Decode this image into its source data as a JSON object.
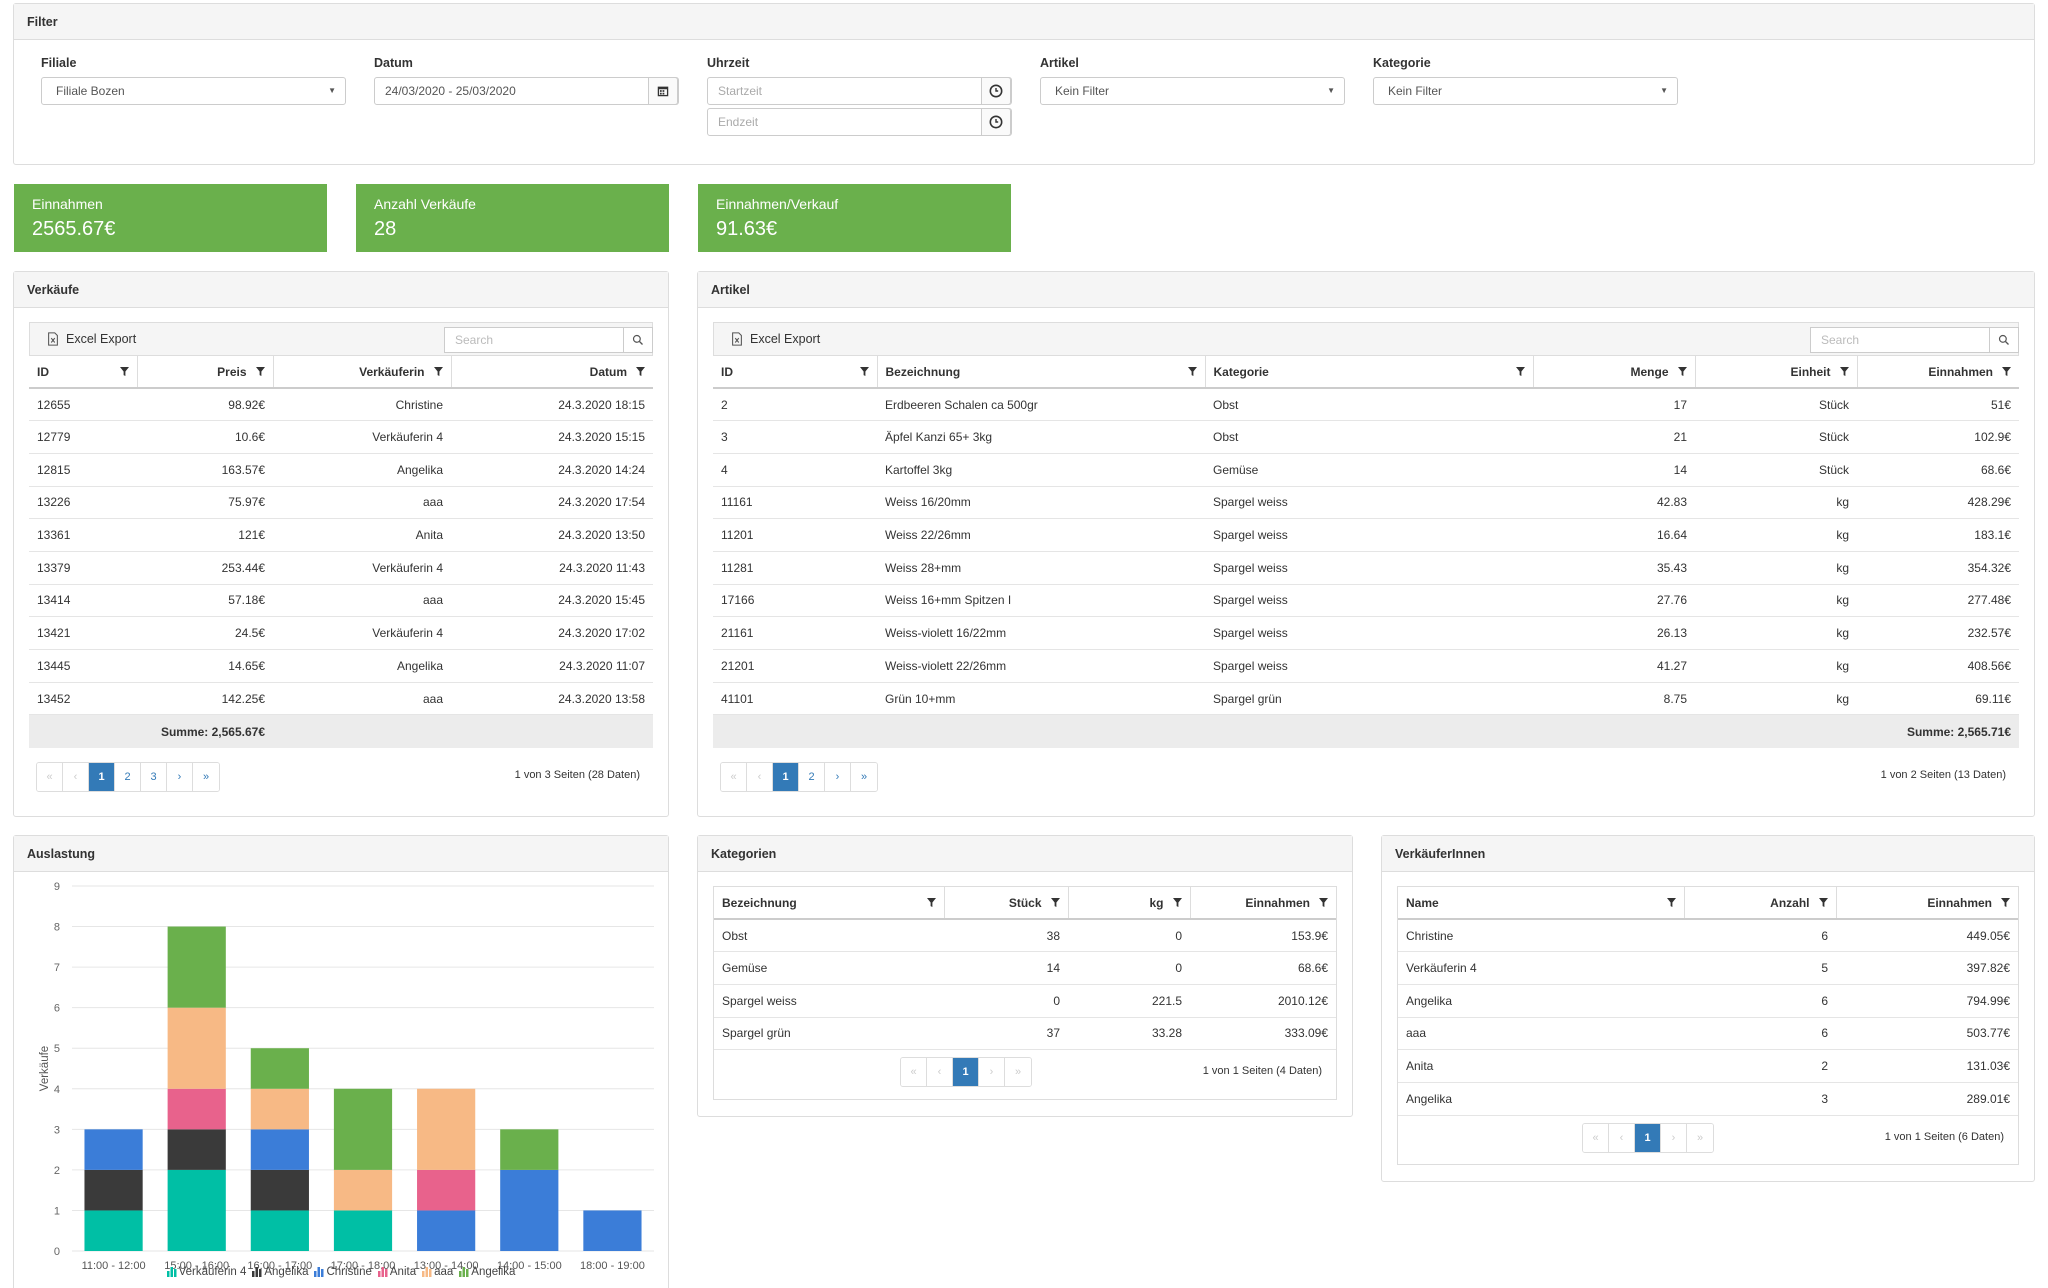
{
  "filter": {
    "title": "Filter",
    "filiale": {
      "label": "Filiale",
      "value": "Filiale Bozen"
    },
    "datum": {
      "label": "Datum",
      "value": "24/03/2020 - 25/03/2020"
    },
    "uhrzeit": {
      "label": "Uhrzeit",
      "start_placeholder": "Startzeit",
      "end_placeholder": "Endzeit"
    },
    "artikel": {
      "label": "Artikel",
      "value": "Kein Filter"
    },
    "kategorie": {
      "label": "Kategorie",
      "value": "Kein Filter"
    }
  },
  "kpis": [
    {
      "label": "Einnahmen",
      "value": "2565.67€"
    },
    {
      "label": "Anzahl Verkäufe",
      "value": "28"
    },
    {
      "label": "Einnahmen/Verkauf",
      "value": "91.63€"
    }
  ],
  "colors": {
    "kpi_green": "#6ab04c",
    "primary": "#337ab7"
  },
  "verkaeufe": {
    "title": "Verkäufe",
    "export_label": "Excel Export",
    "search_placeholder": "Search",
    "columns": [
      "ID",
      "Preis",
      "Verkäuferin",
      "Datum"
    ],
    "rows": [
      [
        "12655",
        "98.92€",
        "Christine",
        "24.3.2020 18:15"
      ],
      [
        "12779",
        "10.6€",
        "Verkäuferin 4",
        "24.3.2020 15:15"
      ],
      [
        "12815",
        "163.57€",
        "Angelika",
        "24.3.2020 14:24"
      ],
      [
        "13226",
        "75.97€",
        "aaa",
        "24.3.2020 17:54"
      ],
      [
        "13361",
        "121€",
        "Anita",
        "24.3.2020 13:50"
      ],
      [
        "13379",
        "253.44€",
        "Verkäuferin 4",
        "24.3.2020 11:43"
      ],
      [
        "13414",
        "57.18€",
        "aaa",
        "24.3.2020 15:45"
      ],
      [
        "13421",
        "24.5€",
        "Verkäuferin 4",
        "24.3.2020 17:02"
      ],
      [
        "13445",
        "14.65€",
        "Angelika",
        "24.3.2020 11:07"
      ],
      [
        "13452",
        "142.25€",
        "aaa",
        "24.3.2020 13:58"
      ]
    ],
    "sum": "Summe: 2,565.67€",
    "pages": [
      "1",
      "2",
      "3"
    ],
    "page_info": "1 von 3 Seiten (28 Daten)"
  },
  "artikel": {
    "title": "Artikel",
    "export_label": "Excel Export",
    "search_placeholder": "Search",
    "columns": [
      "ID",
      "Bezeichnung",
      "Kategorie",
      "Menge",
      "Einheit",
      "Einnahmen"
    ],
    "rows": [
      [
        "2",
        "Erdbeeren Schalen ca 500gr",
        "Obst",
        "17",
        "Stück",
        "51€"
      ],
      [
        "3",
        "Äpfel Kanzi 65+ 3kg",
        "Obst",
        "21",
        "Stück",
        "102.9€"
      ],
      [
        "4",
        "Kartoffel 3kg",
        "Gemüse",
        "14",
        "Stück",
        "68.6€"
      ],
      [
        "11161",
        "Weiss 16/20mm",
        "Spargel weiss",
        "42.83",
        "kg",
        "428.29€"
      ],
      [
        "11201",
        "Weiss 22/26mm",
        "Spargel weiss",
        "16.64",
        "kg",
        "183.1€"
      ],
      [
        "11281",
        "Weiss 28+mm",
        "Spargel weiss",
        "35.43",
        "kg",
        "354.32€"
      ],
      [
        "17166",
        "Weiss 16+mm Spitzen I",
        "Spargel weiss",
        "27.76",
        "kg",
        "277.48€"
      ],
      [
        "21161",
        "Weiss-violett 16/22mm",
        "Spargel weiss",
        "26.13",
        "kg",
        "232.57€"
      ],
      [
        "21201",
        "Weiss-violett 22/26mm",
        "Spargel weiss",
        "41.27",
        "kg",
        "408.56€"
      ],
      [
        "41101",
        "Grün 10+mm",
        "Spargel grün",
        "8.75",
        "kg",
        "69.11€"
      ]
    ],
    "sum": "Summe: 2,565.71€",
    "pages": [
      "1",
      "2"
    ],
    "page_info": "1 von 2 Seiten (13 Daten)"
  },
  "auslastung": {
    "title": "Auslastung"
  },
  "chart_data": {
    "type": "bar",
    "stacked": true,
    "categories": [
      "11:00 - 12:00",
      "15:00 - 16:00",
      "16:00 - 17:00",
      "17:00 - 18:00",
      "13:00 - 14:00",
      "14:00 - 15:00",
      "18:00 - 19:00"
    ],
    "ylabel": "Verkäufe",
    "ylim": [
      0,
      9
    ],
    "yticks": [
      0,
      1,
      2,
      3,
      4,
      5,
      6,
      7,
      8,
      9
    ],
    "grid": true,
    "legend_position": "bottom",
    "series": [
      {
        "name": "Verkäuferin 4",
        "color": "#00bfa5",
        "values": [
          1,
          2,
          1,
          1,
          0,
          0,
          0
        ]
      },
      {
        "name": "Angelika",
        "color": "#3a3a3a",
        "values": [
          1,
          1,
          1,
          0,
          0,
          0,
          0
        ]
      },
      {
        "name": "Christine",
        "color": "#3b7dd8",
        "values": [
          1,
          0,
          1,
          0,
          1,
          2,
          1
        ]
      },
      {
        "name": "Anita",
        "color": "#e8628c",
        "values": [
          0,
          1,
          0,
          0,
          1,
          0,
          0
        ]
      },
      {
        "name": "aaa",
        "color": "#f7b985",
        "values": [
          0,
          2,
          1,
          1,
          2,
          0,
          0
        ]
      },
      {
        "name": "Angelika",
        "color": "#6ab04c",
        "values": [
          0,
          2,
          1,
          2,
          0,
          1,
          0
        ]
      }
    ]
  },
  "kategorien": {
    "title": "Kategorien",
    "columns": [
      "Bezeichnung",
      "Stück",
      "kg",
      "Einnahmen"
    ],
    "rows": [
      [
        "Obst",
        "38",
        "0",
        "153.9€"
      ],
      [
        "Gemüse",
        "14",
        "0",
        "68.6€"
      ],
      [
        "Spargel weiss",
        "0",
        "221.5",
        "2010.12€"
      ],
      [
        "Spargel grün",
        "37",
        "33.28",
        "333.09€"
      ]
    ],
    "pages": [
      "1"
    ],
    "page_info": "1 von 1 Seiten (4 Daten)"
  },
  "verkaeuferinnen": {
    "title": "VerkäuferInnen",
    "columns": [
      "Name",
      "Anzahl",
      "Einnahmen"
    ],
    "rows": [
      [
        "Christine",
        "6",
        "449.05€"
      ],
      [
        "Verkäuferin 4",
        "5",
        "397.82€"
      ],
      [
        "Angelika",
        "6",
        "794.99€"
      ],
      [
        "aaa",
        "6",
        "503.77€"
      ],
      [
        "Anita",
        "2",
        "131.03€"
      ],
      [
        "Angelika",
        "3",
        "289.01€"
      ]
    ],
    "pages": [
      "1"
    ],
    "page_info": "1 von 1 Seiten (6 Daten)"
  }
}
